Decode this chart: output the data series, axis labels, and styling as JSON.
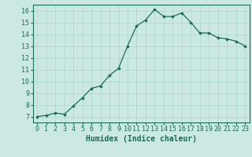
{
  "x": [
    0,
    1,
    2,
    3,
    4,
    5,
    6,
    7,
    8,
    9,
    10,
    11,
    12,
    13,
    14,
    15,
    16,
    17,
    18,
    19,
    20,
    21,
    22,
    23
  ],
  "y": [
    7.0,
    7.1,
    7.3,
    7.2,
    7.9,
    8.6,
    9.4,
    9.6,
    10.5,
    11.1,
    13.0,
    14.7,
    15.2,
    16.1,
    15.5,
    15.5,
    15.8,
    15.0,
    14.1,
    14.1,
    13.7,
    13.6,
    13.4,
    13.0
  ],
  "xlabel": "Humidex (Indice chaleur)",
  "ylim": [
    6.5,
    16.5
  ],
  "xlim": [
    -0.5,
    23.5
  ],
  "yticks": [
    7,
    8,
    9,
    10,
    11,
    12,
    13,
    14,
    15,
    16
  ],
  "xticks": [
    0,
    1,
    2,
    3,
    4,
    5,
    6,
    7,
    8,
    9,
    10,
    11,
    12,
    13,
    14,
    15,
    16,
    17,
    18,
    19,
    20,
    21,
    22,
    23
  ],
  "line_color": "#1a6b5a",
  "marker": "D",
  "marker_size": 1.8,
  "bg_color": "#cce8e4",
  "grid_color": "#aad4ce",
  "tick_color": "#1a6b5a",
  "label_color": "#1a6b5a",
  "font_size_axis": 6,
  "font_size_label": 7,
  "linewidth": 0.9
}
